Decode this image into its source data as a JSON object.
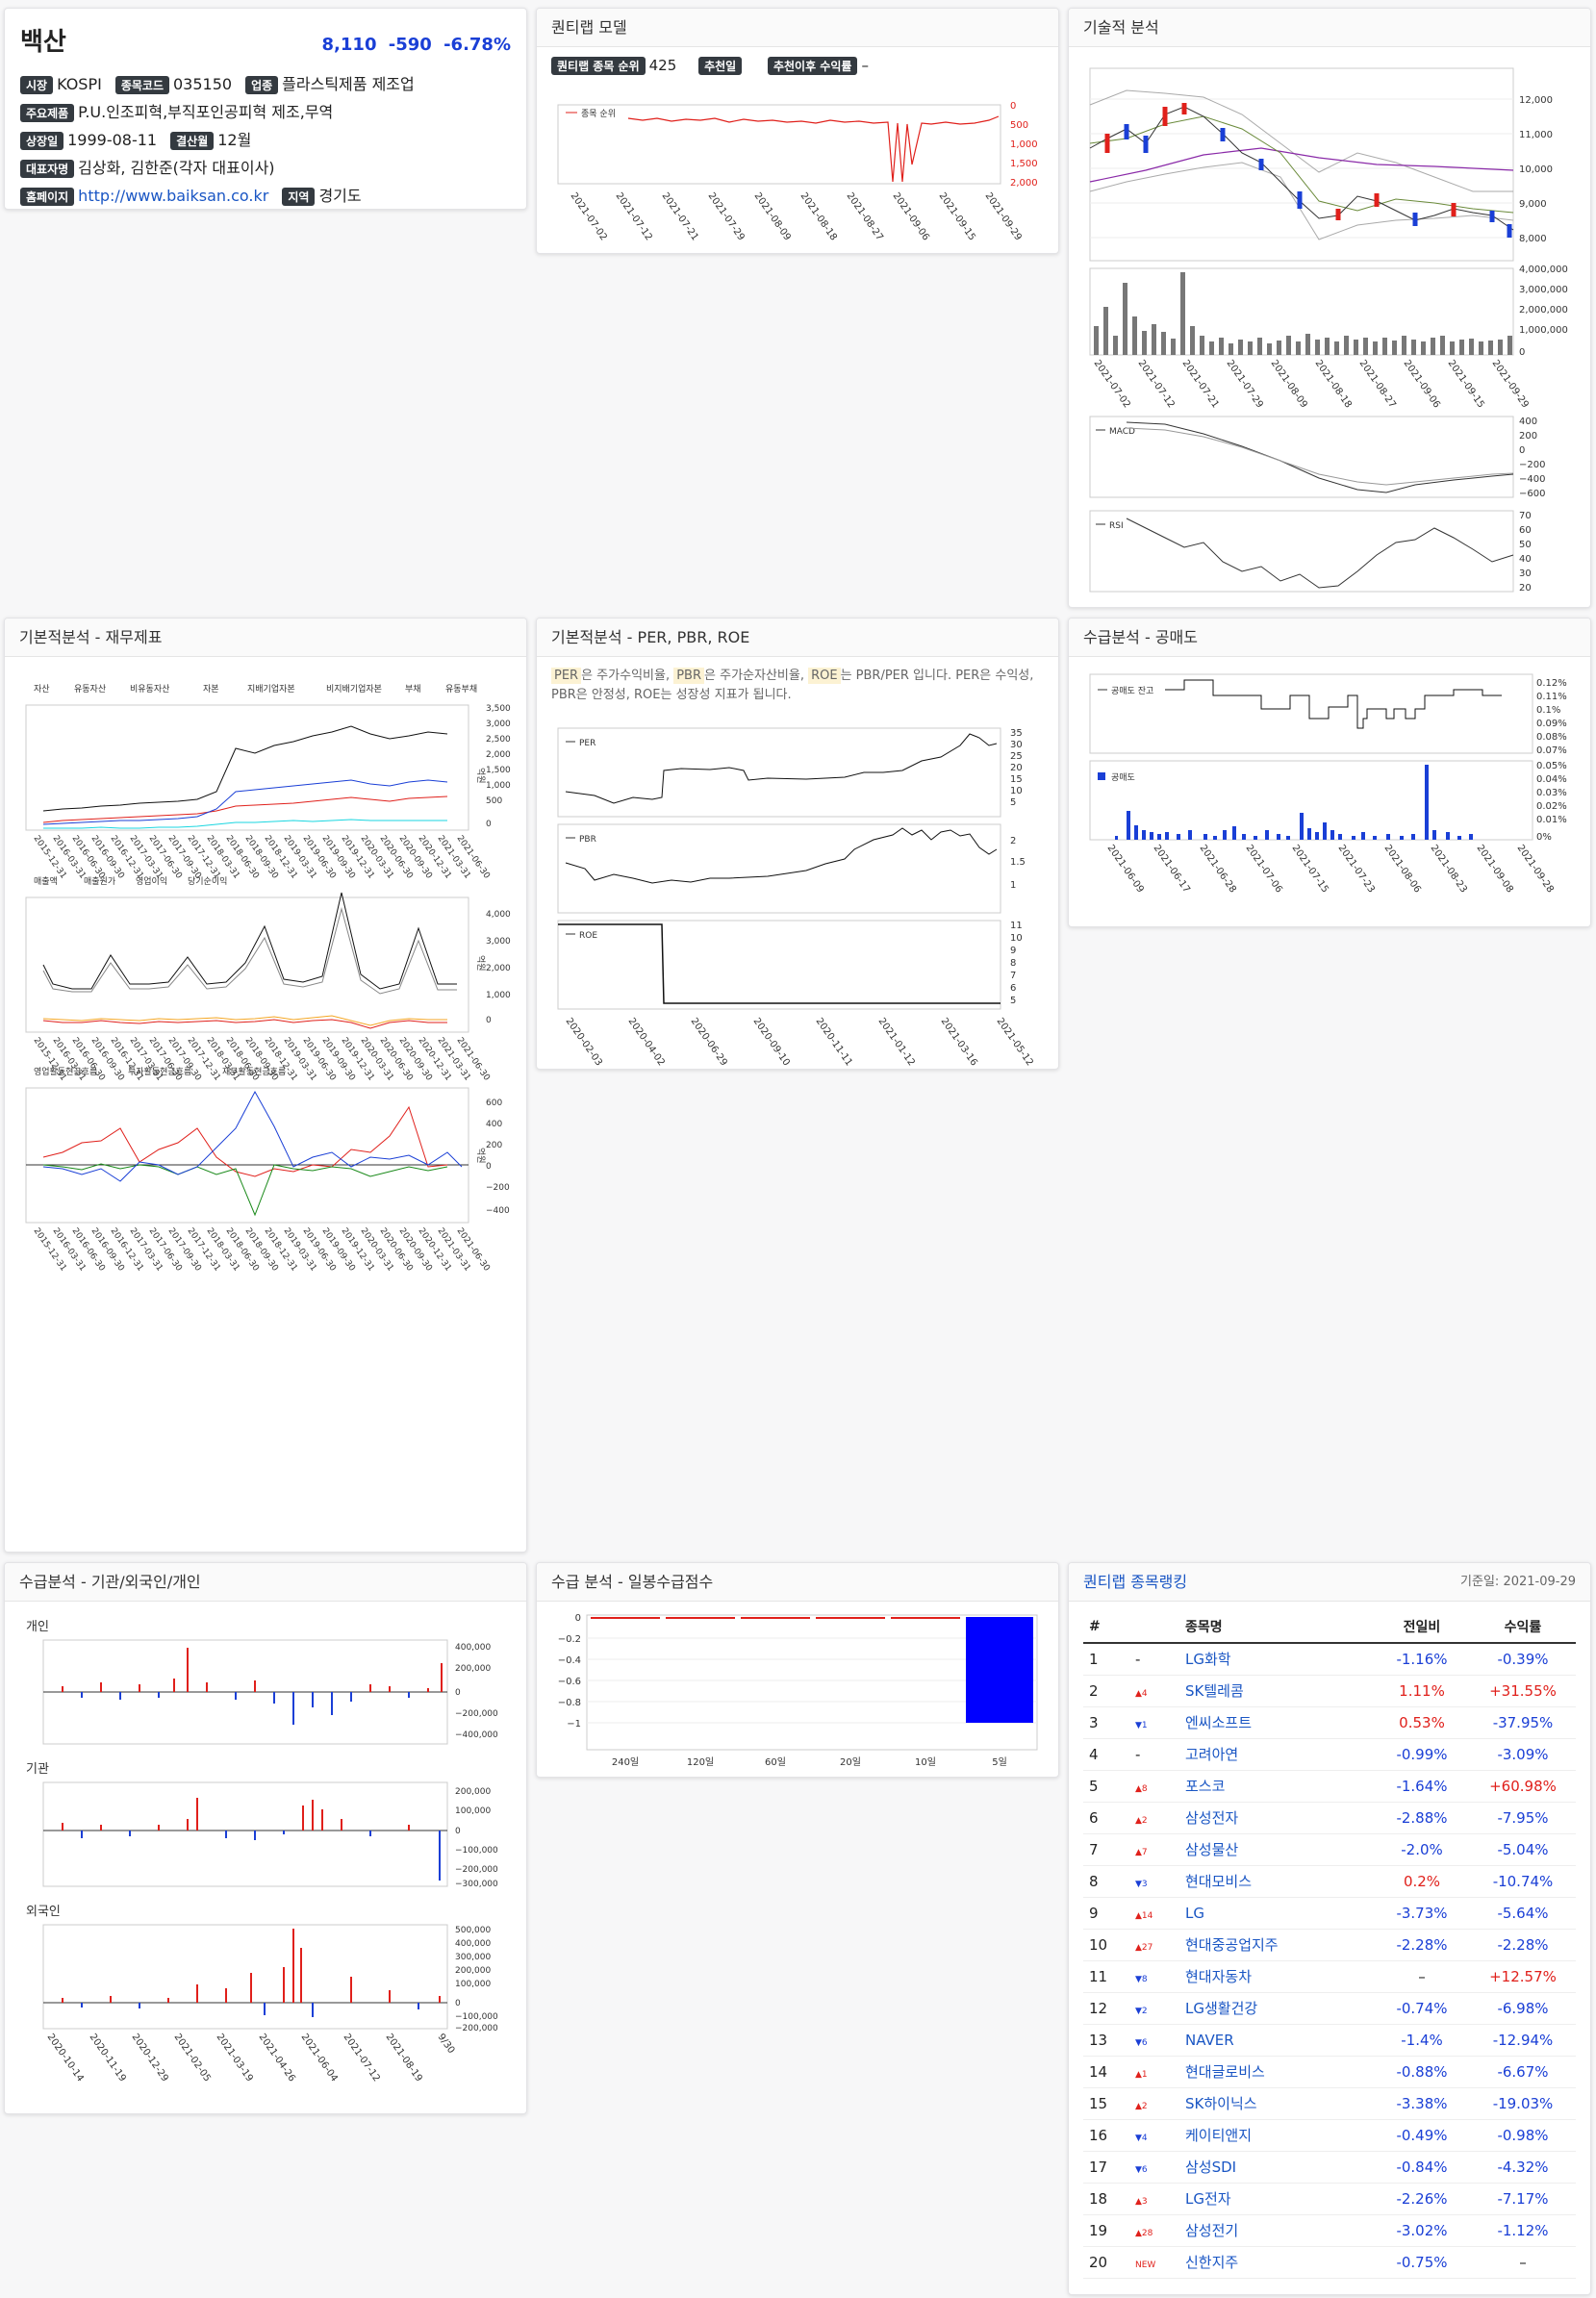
{
  "stock": {
    "name": "백산",
    "price": "8,110",
    "change": "-590",
    "pct": "-6.78%",
    "market_label": "시장",
    "market": "KOSPI",
    "code_label": "종목코드",
    "code": "035150",
    "industry_label": "업종",
    "industry": "플라스틱제품 제조업",
    "product_label": "주요제품",
    "product": "P.U.인조피혁,부직포인공피혁 제조,무역",
    "listing_label": "상장일",
    "listing": "1999-08-11",
    "fiscal_label": "결산월",
    "fiscal": "12월",
    "ceo_label": "대표자명",
    "ceo": "김상화, 김한준(각자 대표이사)",
    "home_label": "홈페이지",
    "home": "http://www.baiksan.co.kr",
    "region_label": "지역",
    "region": "경기도"
  },
  "quantilab": {
    "title": "퀀티랩 모델",
    "rank_label": "퀀티랩 종목 순위",
    "rank": "425",
    "rec_label": "추천일",
    "ret_label": "추천이후 수익률",
    "ret": "–",
    "legend": "종목 순위",
    "y_ticks": [
      "0",
      "500",
      "1,000",
      "1,500",
      "2,000"
    ],
    "x_ticks": [
      "2021-07-02",
      "2021-07-12",
      "2021-07-21",
      "2021-07-29",
      "2021-08-09",
      "2021-08-18",
      "2021-08-27",
      "2021-09-06",
      "2021-09-15",
      "2021-09-29"
    ]
  },
  "tech": {
    "title": "기술적 분석",
    "price_ticks": [
      "12,000",
      "11,000",
      "10,000",
      "9,000",
      "8,000"
    ],
    "vol_ticks": [
      "4,000,000",
      "3,000,000",
      "2,000,000",
      "1,000,000",
      "0"
    ],
    "x_ticks": [
      "2021-07-02",
      "2021-07-12",
      "2021-07-21",
      "2021-07-29",
      "2021-08-09",
      "2021-08-18",
      "2021-08-27",
      "2021-09-06",
      "2021-09-15",
      "2021-09-29"
    ],
    "macd_label": "MACD",
    "macd_ticks": [
      "400",
      "200",
      "0",
      "−200",
      "−400",
      "−600"
    ],
    "rsi_label": "RSI",
    "rsi_ticks": [
      "70",
      "60",
      "50",
      "40",
      "30",
      "20"
    ]
  },
  "fund": {
    "title": "기본적분석 - 재무제표",
    "unit": "억원",
    "legend1": [
      "자산",
      "유동자산",
      "비유동자산",
      "자본",
      "지배기업자본",
      "비지배기업자본",
      "부채",
      "유동부채"
    ],
    "legend2": [
      "매출액",
      "매출원가",
      "영업이익",
      "당기순이익"
    ],
    "legend3": [
      "영업활동현금흐름",
      "투자활동현금흐름",
      "재무활동현금흐름"
    ],
    "y1": [
      "3,500",
      "3,000",
      "2,500",
      "2,000",
      "1,500",
      "1,000",
      "500",
      "0"
    ],
    "y2": [
      "4,000",
      "3,000",
      "2,000",
      "1,000",
      "0"
    ],
    "y3": [
      "600",
      "400",
      "200",
      "0",
      "−200",
      "−400"
    ],
    "x": [
      "2015-12-31",
      "2016-03-31",
      "2016-06-30",
      "2016-09-30",
      "2016-12-31",
      "2017-03-31",
      "2017-06-30",
      "2017-09-30",
      "2017-12-31",
      "2018-03-31",
      "2018-06-30",
      "2018-09-30",
      "2018-12-31",
      "2019-03-31",
      "2019-06-30",
      "2019-09-30",
      "2019-12-31",
      "2020-03-31",
      "2020-06-30",
      "2020-09-30",
      "2020-12-31",
      "2021-03-31",
      "2021-06-30"
    ]
  },
  "per": {
    "title": "기본적분석 - PER, PBR, ROE",
    "desc_a": "PER",
    "desc_b": "은 주가수익비율, ",
    "desc_c": "PBR",
    "desc_d": "은 주가순자산비율, ",
    "desc_e": "ROE",
    "desc_f": "는 PBR/PER 입니다. PER은 수익성, PBR은 안정성, ROE는 성장성 지표가 됩니다.",
    "per_label": "PER",
    "per_ticks": [
      "35",
      "30",
      "25",
      "20",
      "15",
      "10",
      "5"
    ],
    "pbr_label": "PBR",
    "pbr_ticks": [
      "2",
      "1.5",
      "1"
    ],
    "roe_label": "ROE",
    "roe_ticks": [
      "11",
      "10",
      "9",
      "8",
      "7",
      "6",
      "5"
    ],
    "x": [
      "2020-02-03",
      "2020-04-02",
      "2020-06-29",
      "2020-09-10",
      "2020-11-11",
      "2021-01-12",
      "2021-03-16",
      "2021-05-12"
    ]
  },
  "short": {
    "title": "수급분석 - 공매도",
    "bal_label": "공매도 잔고",
    "bal_ticks": [
      "0.12%",
      "0.11%",
      "0.1%",
      "0.09%",
      "0.08%",
      "0.07%"
    ],
    "vol_label": "공매도",
    "vol_ticks": [
      "0.05%",
      "0.04%",
      "0.03%",
      "0.02%",
      "0.01%",
      "0%"
    ],
    "x": [
      "2021-06-09",
      "2021-06-17",
      "2021-06-28",
      "2021-07-06",
      "2021-07-15",
      "2021-07-23",
      "2021-08-06",
      "2021-08-23",
      "2021-09-08",
      "2021-09-28"
    ]
  },
  "supply": {
    "title": "수급분석 - 기관/외국인/개인",
    "p_label": "개인",
    "p_ticks": [
      "400,000",
      "200,000",
      "0",
      "−200,000",
      "−400,000"
    ],
    "i_label": "기관",
    "i_ticks": [
      "200,000",
      "100,000",
      "0",
      "−100,000",
      "−200,000",
      "−300,000"
    ],
    "f_label": "외국인",
    "f_ticks": [
      "500,000",
      "400,000",
      "300,000",
      "200,000",
      "100,000",
      "0",
      "−100,000",
      "−200,000"
    ],
    "x": [
      "2020-10-14",
      "2020-11-19",
      "2020-12-29",
      "2021-02-05",
      "2021-03-19",
      "2021-04-26",
      "2021-06-04",
      "2021-07-12",
      "2021-08-19",
      "9/30"
    ]
  },
  "score": {
    "title": "수급 분석 - 일봉수급점수",
    "y": [
      "0",
      "−0.2",
      "−0.4",
      "−0.6",
      "−0.8",
      "−1"
    ],
    "cats": [
      "240일",
      "120일",
      "60일",
      "20일",
      "10일",
      "5일"
    ]
  },
  "rank": {
    "title": "퀀티랩 종목랭킹",
    "date": "기준일: 2021-09-29",
    "cols": [
      "#",
      "종목명",
      "전일비",
      "수익률"
    ],
    "rows": [
      {
        "n": "1",
        "mv": "-",
        "dir": "",
        "name": "LG화학",
        "chg": "-1.16%",
        "cc": "neg",
        "ret": "-0.39%",
        "rc": "neg"
      },
      {
        "n": "2",
        "mv": "4",
        "dir": "up",
        "name": "SK텔레콤",
        "chg": "1.11%",
        "cc": "pos",
        "ret": "+31.55%",
        "rc": "pos"
      },
      {
        "n": "3",
        "mv": "1",
        "dir": "down",
        "name": "엔씨소프트",
        "chg": "0.53%",
        "cc": "pos",
        "ret": "-37.95%",
        "rc": "neg"
      },
      {
        "n": "4",
        "mv": "-",
        "dir": "",
        "name": "고려아연",
        "chg": "-0.99%",
        "cc": "neg",
        "ret": "-3.09%",
        "rc": "neg"
      },
      {
        "n": "5",
        "mv": "8",
        "dir": "up",
        "name": "포스코",
        "chg": "-1.64%",
        "cc": "neg",
        "ret": "+60.98%",
        "rc": "pos"
      },
      {
        "n": "6",
        "mv": "2",
        "dir": "up",
        "name": "삼성전자",
        "chg": "-2.88%",
        "cc": "neg",
        "ret": "-7.95%",
        "rc": "neg"
      },
      {
        "n": "7",
        "mv": "7",
        "dir": "up",
        "name": "삼성물산",
        "chg": "-2.0%",
        "cc": "neg",
        "ret": "-5.04%",
        "rc": "neg"
      },
      {
        "n": "8",
        "mv": "3",
        "dir": "down",
        "name": "현대모비스",
        "chg": "0.2%",
        "cc": "pos",
        "ret": "-10.74%",
        "rc": "neg"
      },
      {
        "n": "9",
        "mv": "14",
        "dir": "up",
        "name": "LG",
        "chg": "-3.73%",
        "cc": "neg",
        "ret": "-5.64%",
        "rc": "neg"
      },
      {
        "n": "10",
        "mv": "27",
        "dir": "up",
        "name": "현대중공업지주",
        "chg": "-2.28%",
        "cc": "neg",
        "ret": "-2.28%",
        "rc": "neg"
      },
      {
        "n": "11",
        "mv": "8",
        "dir": "down",
        "name": "현대자동차",
        "chg": "–",
        "cc": "",
        "ret": "+12.57%",
        "rc": "pos"
      },
      {
        "n": "12",
        "mv": "2",
        "dir": "down",
        "name": "LG생활건강",
        "chg": "-0.74%",
        "cc": "neg",
        "ret": "-6.98%",
        "rc": "neg"
      },
      {
        "n": "13",
        "mv": "6",
        "dir": "down",
        "name": "NAVER",
        "chg": "-1.4%",
        "cc": "neg",
        "ret": "-12.94%",
        "rc": "neg"
      },
      {
        "n": "14",
        "mv": "1",
        "dir": "up",
        "name": "현대글로비스",
        "chg": "-0.88%",
        "cc": "neg",
        "ret": "-6.67%",
        "rc": "neg"
      },
      {
        "n": "15",
        "mv": "2",
        "dir": "up",
        "name": "SK하이닉스",
        "chg": "-3.38%",
        "cc": "neg",
        "ret": "-19.03%",
        "rc": "neg"
      },
      {
        "n": "16",
        "mv": "4",
        "dir": "down",
        "name": "케이티앤지",
        "chg": "-0.49%",
        "cc": "neg",
        "ret": "-0.98%",
        "rc": "neg"
      },
      {
        "n": "17",
        "mv": "6",
        "dir": "down",
        "name": "삼성SDI",
        "chg": "-0.84%",
        "cc": "neg",
        "ret": "-4.32%",
        "rc": "neg"
      },
      {
        "n": "18",
        "mv": "3",
        "dir": "up",
        "name": "LG전자",
        "chg": "-2.26%",
        "cc": "neg",
        "ret": "-7.17%",
        "rc": "neg"
      },
      {
        "n": "19",
        "mv": "28",
        "dir": "up",
        "name": "삼성전기",
        "chg": "-3.02%",
        "cc": "neg",
        "ret": "-1.12%",
        "rc": "neg"
      },
      {
        "n": "20",
        "mv": "NEW",
        "dir": "new",
        "name": "신한지주",
        "chg": "-0.75%",
        "cc": "neg",
        "ret": "–",
        "rc": ""
      }
    ]
  }
}
